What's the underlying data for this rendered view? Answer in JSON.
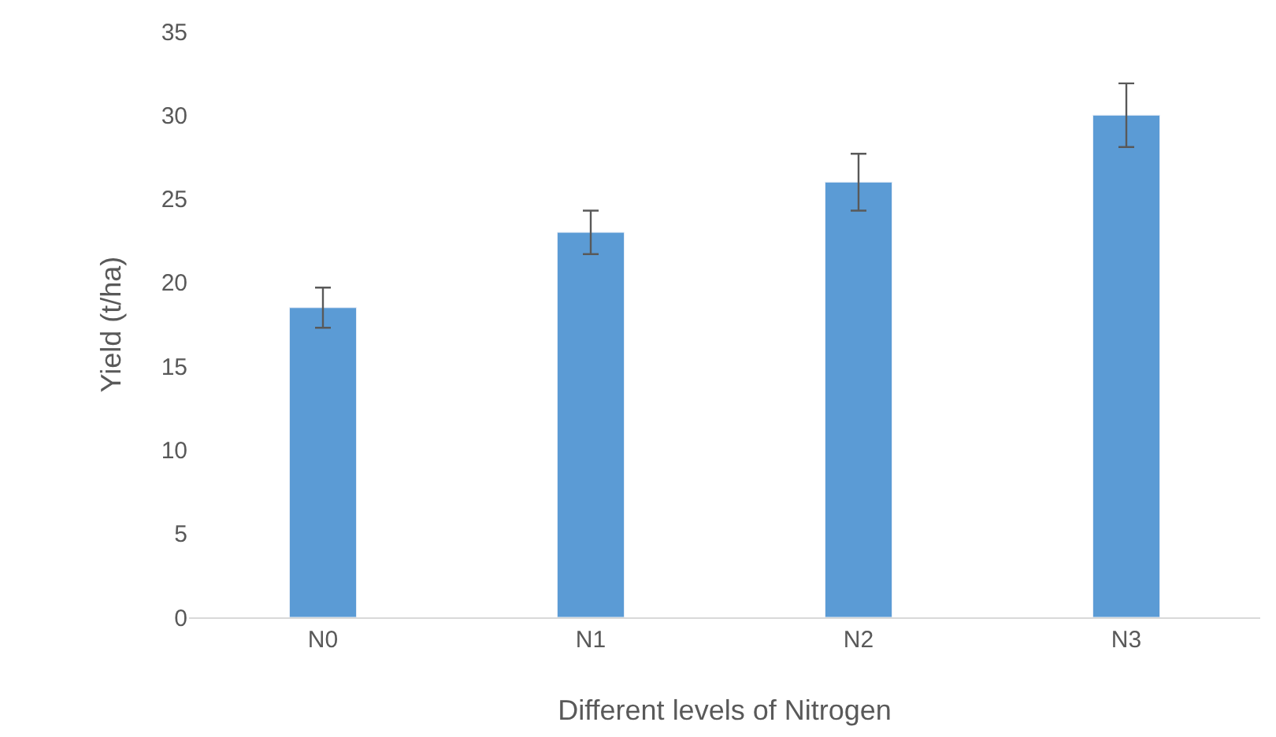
{
  "chart_data": {
    "type": "bar",
    "xlabel": "Different levels of Nitrogen",
    "ylabel": "Yield (t/ha)",
    "categories": [
      "N0",
      "N1",
      "N2",
      "N3"
    ],
    "values": [
      18.5,
      23,
      26,
      30
    ],
    "errors": [
      1.2,
      1.3,
      1.7,
      1.9
    ],
    "color": "#5b9bd5",
    "ylim": [
      0,
      35
    ],
    "yticks": [
      0,
      5,
      10,
      15,
      20,
      25,
      30,
      35
    ],
    "grid": false
  }
}
